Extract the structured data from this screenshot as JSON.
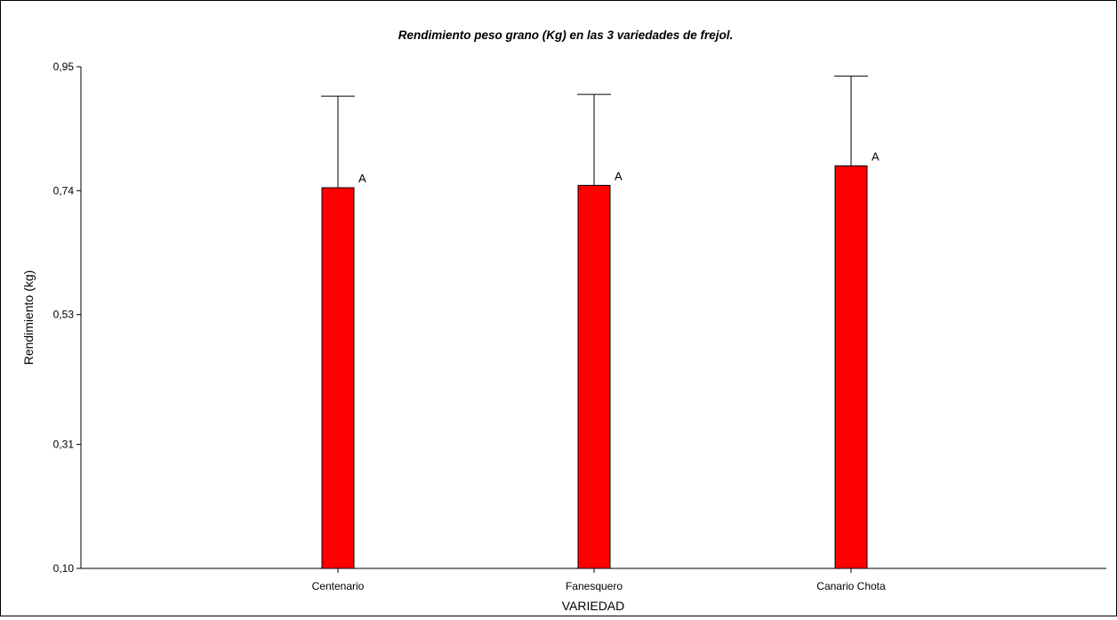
{
  "chart_data": {
    "type": "bar",
    "title": "Rendimiento peso grano (Kg) en las 3 variedades de frejol.",
    "xlabel": "VARIEDAD",
    "ylabel": "Rendimiento (kg)",
    "ylim": [
      0.1,
      0.95
    ],
    "yticks": [
      "0,10",
      "0,31",
      "0,53",
      "0,74",
      "0,95"
    ],
    "ytick_values": [
      0.1,
      0.31,
      0.53,
      0.74,
      0.95
    ],
    "categories": [
      "Centenario",
      "Fanesquero",
      "Canario Chota"
    ],
    "values": [
      0.745,
      0.749,
      0.782
    ],
    "error_upper": [
      0.9,
      0.903,
      0.934
    ],
    "letters": [
      "A",
      "A",
      "A"
    ],
    "bar_color": "#ff0000",
    "grid": false
  }
}
